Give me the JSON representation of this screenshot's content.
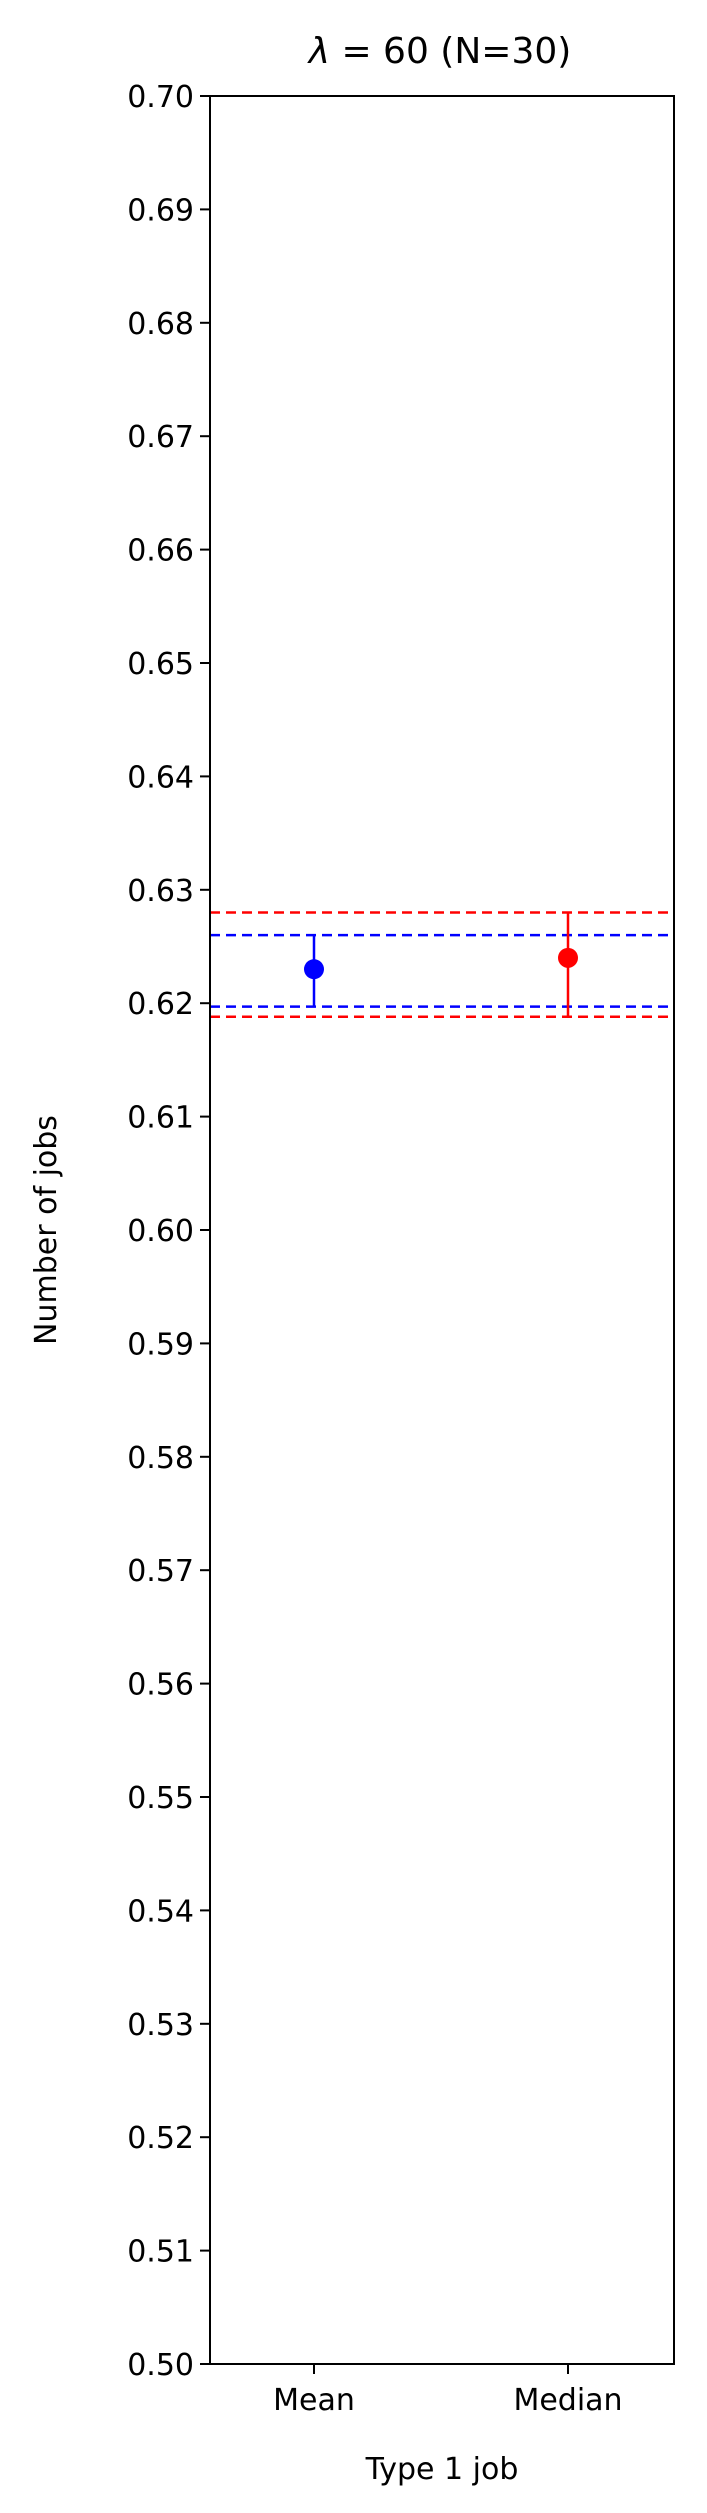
{
  "chart_data": {
    "type": "scatter",
    "title_prefix": "λ",
    "title_suffix": " = 60 (N=30)",
    "xlabel": "Type 1 job",
    "ylabel": "Number of jobs",
    "ylim": [
      0.5,
      0.7
    ],
    "yticks": [
      "0.50",
      "0.51",
      "0.52",
      "0.53",
      "0.54",
      "0.55",
      "0.56",
      "0.57",
      "0.58",
      "0.59",
      "0.60",
      "0.61",
      "0.62",
      "0.63",
      "0.64",
      "0.65",
      "0.66",
      "0.67",
      "0.68",
      "0.69",
      "0.70"
    ],
    "categories": [
      "Mean",
      "Median"
    ],
    "points": [
      {
        "category": "Mean",
        "value": 0.623,
        "lower": 0.6197,
        "upper": 0.626,
        "color": "#0000ff"
      },
      {
        "category": "Median",
        "value": 0.624,
        "lower": 0.6188,
        "upper": 0.628,
        "color": "#ff0000"
      }
    ],
    "reference_lines": [
      {
        "value": 0.626,
        "color": "#0000ff",
        "style": "dashed"
      },
      {
        "value": 0.6197,
        "color": "#0000ff",
        "style": "dashed"
      },
      {
        "value": 0.628,
        "color": "#ff0000",
        "style": "dashed"
      },
      {
        "value": 0.6188,
        "color": "#ff0000",
        "style": "dashed"
      }
    ],
    "grid": false,
    "legend": "none"
  }
}
